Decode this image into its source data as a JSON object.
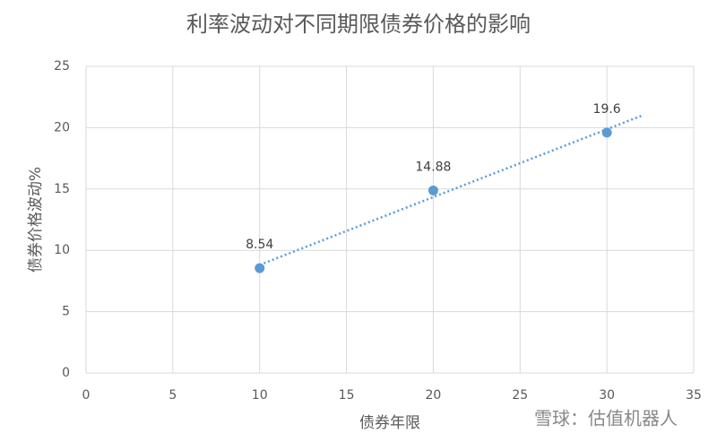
{
  "chart_data": {
    "type": "scatter",
    "title": "利率波动对不同期限债券价格的影响",
    "x_label": "债券年限",
    "y_label": "债券价格波动%",
    "series": [
      {
        "name": "债券价格波动",
        "color": "#5b9bd5",
        "x": [
          10,
          20,
          30
        ],
        "values": [
          8.54,
          14.88,
          19.6
        ]
      }
    ],
    "xlim": [
      0,
      35
    ],
    "xticks": [
      0,
      5,
      10,
      15,
      20,
      25,
      30,
      35
    ],
    "ylim": [
      0,
      25
    ],
    "yticks": [
      0,
      5,
      10,
      15,
      20,
      25
    ],
    "grid": true,
    "trendline": {
      "type": "linear",
      "forward": 2
    },
    "watermark": "雪球：估值机器人"
  }
}
